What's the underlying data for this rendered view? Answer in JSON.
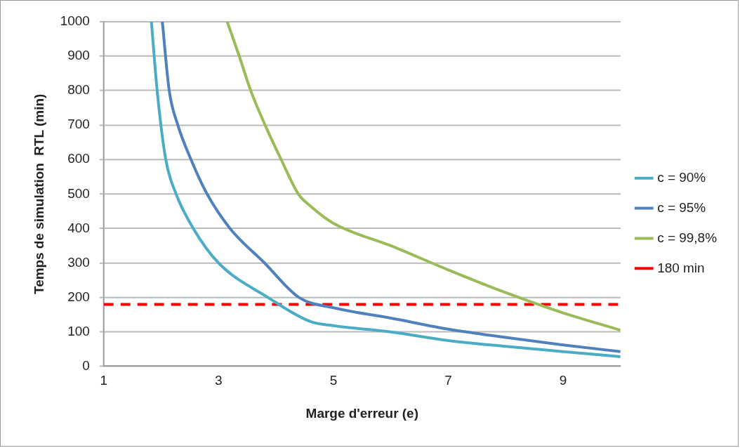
{
  "chart_data": {
    "type": "line",
    "xlabel": "Marge d'erreur (e)",
    "ylabel": "Temps de simulation  RTL (min)",
    "xlim": [
      1,
      10
    ],
    "xticks": [
      1,
      3,
      5,
      7,
      9
    ],
    "ylim": [
      0,
      1000
    ],
    "yticks": [
      0,
      100,
      200,
      300,
      400,
      500,
      600,
      700,
      800,
      900,
      1000
    ],
    "grid": "y",
    "legend": "right",
    "marker": "none",
    "line_style": "solid",
    "series": [
      {
        "name": "c = 90%",
        "color": "#4bacc6",
        "x": [
          1.83,
          1.93,
          2.08,
          2.26,
          2.56,
          3.0,
          3.86,
          4.6,
          5,
          6,
          7,
          8,
          9,
          10
        ],
        "values": [
          1000,
          800,
          600,
          500,
          400,
          300,
          200,
          130,
          118,
          100,
          75,
          58,
          43,
          28
        ]
      },
      {
        "name": "c = 95%",
        "color": "#4f81bd",
        "x": [
          2.02,
          2.14,
          2.29,
          2.52,
          2.8,
          3.2,
          3.8,
          4.4,
          5,
          6,
          7,
          8,
          9,
          10
        ],
        "values": [
          1000,
          800,
          700,
          600,
          500,
          400,
          300,
          200,
          170,
          140,
          108,
          84,
          62,
          43
        ]
      },
      {
        "name": "c = 99,8%",
        "color": "#9bbb59",
        "x": [
          3.15,
          3.36,
          3.56,
          3.81,
          4.09,
          4.39,
          4.6,
          5,
          6,
          7,
          8,
          9,
          10
        ],
        "values": [
          1000,
          900,
          800,
          700,
          600,
          500,
          465,
          415,
          350,
          280,
          214,
          155,
          105
        ]
      }
    ],
    "ref_lines": [
      {
        "axis": "y",
        "value": 180,
        "label": "180 min",
        "color": "#ff0000",
        "line_style": "dashed"
      }
    ]
  }
}
